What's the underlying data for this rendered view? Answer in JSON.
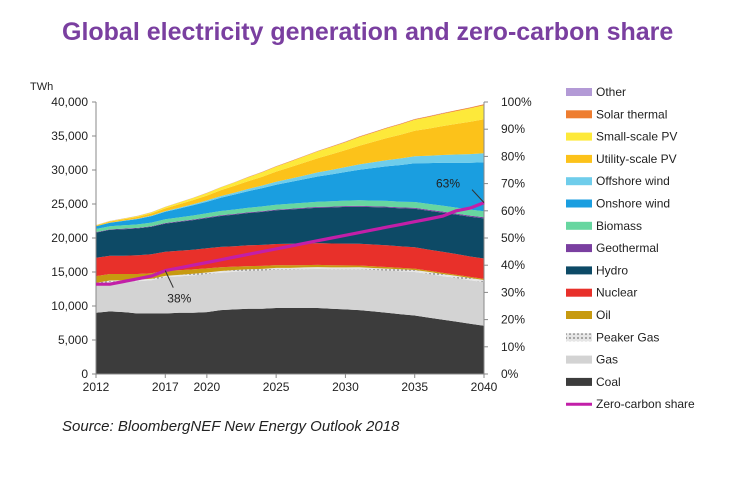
{
  "title": "Global electricity generation and zero-carbon share",
  "source": "Source: BloombergNEF New Energy Outlook 2018",
  "chart_data": {
    "type": "area",
    "title": "Global electricity generation and zero-carbon share",
    "xlabel": "",
    "ylabel": "TWh",
    "ylim": [
      0,
      40000
    ],
    "y2lim": [
      0,
      100
    ],
    "x": [
      2012,
      2013,
      2014,
      2015,
      2016,
      2017,
      2018,
      2019,
      2020,
      2021,
      2022,
      2023,
      2024,
      2025,
      2026,
      2027,
      2028,
      2029,
      2030,
      2031,
      2032,
      2033,
      2034,
      2035,
      2036,
      2037,
      2038,
      2039,
      2040
    ],
    "x_ticks": [
      2012,
      2017,
      2020,
      2025,
      2030,
      2035,
      2040
    ],
    "y_ticks": [
      "0",
      "5,000",
      "10,000",
      "15,000",
      "20,000",
      "25,000",
      "30,000",
      "35,000",
      "40,000"
    ],
    "y2_ticks": [
      "0%",
      "10%",
      "20%",
      "30%",
      "40%",
      "50%",
      "60%",
      "70%",
      "80%",
      "90%",
      "100%"
    ],
    "legend_position": "right",
    "legend_order": [
      "Other",
      "Solar thermal",
      "Small-scale PV",
      "Utility-scale PV",
      "Offshore wind",
      "Onshore wind",
      "Biomass",
      "Geothermal",
      "Hydro",
      "Nuclear",
      "Oil",
      "Peaker Gas",
      "Gas",
      "Coal",
      "Zero-carbon share"
    ],
    "series": [
      {
        "name": "Coal",
        "color": "#3c3c3c",
        "values": [
          9000,
          9200,
          9100,
          8900,
          8900,
          8900,
          9000,
          9000,
          9100,
          9400,
          9500,
          9600,
          9600,
          9700,
          9700,
          9700,
          9700,
          9600,
          9500,
          9400,
          9200,
          9000,
          8800,
          8600,
          8300,
          8000,
          7700,
          7400,
          7100
        ]
      },
      {
        "name": "Gas",
        "color": "#d3d3d3",
        "values": [
          4200,
          4350,
          4500,
          4750,
          4900,
          5300,
          5350,
          5500,
          5600,
          5500,
          5550,
          5550,
          5600,
          5650,
          5650,
          5700,
          5750,
          5800,
          5900,
          6000,
          6100,
          6200,
          6300,
          6400,
          6400,
          6400,
          6400,
          6400,
          6400
        ]
      },
      {
        "name": "Peaker Gas",
        "color": "#c8c8c8",
        "pattern": "dots",
        "values": [
          200,
          200,
          200,
          210,
          210,
          220,
          220,
          230,
          230,
          240,
          240,
          250,
          250,
          260,
          260,
          270,
          270,
          280,
          280,
          290,
          290,
          300,
          300,
          300,
          310,
          310,
          320,
          320,
          330
        ]
      },
      {
        "name": "Oil",
        "color": "#c79a10",
        "values": [
          1000,
          950,
          900,
          850,
          800,
          750,
          700,
          650,
          600,
          550,
          500,
          470,
          440,
          410,
          380,
          350,
          330,
          310,
          290,
          270,
          250,
          230,
          210,
          200,
          190,
          180,
          170,
          160,
          150
        ]
      },
      {
        "name": "Nuclear",
        "color": "#e8302a",
        "values": [
          2700,
          2700,
          2700,
          2750,
          2800,
          2800,
          2850,
          2900,
          2950,
          3000,
          3000,
          3050,
          3100,
          3100,
          3150,
          3150,
          3200,
          3200,
          3200,
          3200,
          3200,
          3200,
          3150,
          3150,
          3100,
          3100,
          3050,
          3000,
          3000
        ]
      },
      {
        "name": "Hydro",
        "color": "#0d4a66",
        "values": [
          3700,
          3800,
          3900,
          3950,
          4050,
          4150,
          4250,
          4350,
          4450,
          4550,
          4650,
          4750,
          4850,
          4950,
          5050,
          5150,
          5200,
          5300,
          5400,
          5450,
          5500,
          5550,
          5600,
          5650,
          5700,
          5750,
          5800,
          5850,
          5900
        ]
      },
      {
        "name": "Geothermal",
        "color": "#7a3fa0",
        "values": [
          70,
          70,
          75,
          80,
          80,
          85,
          90,
          90,
          95,
          100,
          100,
          105,
          110,
          110,
          115,
          120,
          120,
          125,
          130,
          130,
          135,
          140,
          140,
          145,
          150,
          150,
          155,
          160,
          160
        ]
      },
      {
        "name": "Biomass",
        "color": "#67d6a0",
        "values": [
          450,
          470,
          490,
          510,
          530,
          550,
          570,
          590,
          610,
          630,
          650,
          670,
          690,
          710,
          730,
          750,
          770,
          790,
          800,
          810,
          820,
          830,
          840,
          850,
          860,
          870,
          880,
          890,
          900
        ]
      },
      {
        "name": "Onshore wind",
        "color": "#1a9ee0",
        "values": [
          400,
          500,
          650,
          800,
          950,
          1100,
          1300,
          1500,
          1700,
          1950,
          2200,
          2450,
          2700,
          2950,
          3200,
          3450,
          3700,
          3950,
          4200,
          4500,
          4800,
          5100,
          5400,
          5700,
          6000,
          6300,
          6600,
          6900,
          7200
        ]
      },
      {
        "name": "Offshore wind",
        "color": "#6fcdeb",
        "values": [
          20,
          30,
          40,
          60,
          80,
          100,
          130,
          160,
          200,
          240,
          280,
          330,
          380,
          430,
          480,
          540,
          600,
          660,
          720,
          780,
          840,
          900,
          960,
          1020,
          1080,
          1140,
          1200,
          1260,
          1320
        ]
      },
      {
        "name": "Utility-scale PV",
        "color": "#fcc21a",
        "values": [
          100,
          150,
          200,
          250,
          300,
          400,
          500,
          600,
          700,
          850,
          1000,
          1150,
          1300,
          1500,
          1700,
          1900,
          2100,
          2300,
          2500,
          2750,
          3000,
          3250,
          3500,
          3750,
          4000,
          4250,
          4500,
          4750,
          5000
        ]
      },
      {
        "name": "Small-scale PV",
        "color": "#fde93a",
        "values": [
          50,
          70,
          100,
          130,
          170,
          210,
          260,
          310,
          370,
          430,
          500,
          570,
          650,
          730,
          810,
          900,
          990,
          1080,
          1170,
          1260,
          1350,
          1440,
          1530,
          1620,
          1710,
          1800,
          1890,
          1980,
          2070
        ]
      },
      {
        "name": "Solar thermal",
        "color": "#ee7d30",
        "values": [
          5,
          6,
          8,
          10,
          12,
          15,
          18,
          21,
          25,
          30,
          35,
          40,
          45,
          50,
          55,
          60,
          65,
          70,
          75,
          80,
          85,
          90,
          95,
          100,
          105,
          110,
          115,
          120,
          125
        ]
      },
      {
        "name": "Other",
        "color": "#b39ad6",
        "values": [
          20,
          20,
          20,
          20,
          20,
          20,
          20,
          20,
          20,
          20,
          20,
          20,
          20,
          20,
          20,
          20,
          20,
          20,
          20,
          20,
          20,
          20,
          20,
          20,
          20,
          20,
          20,
          20,
          20
        ]
      }
    ],
    "line_series": {
      "name": "Zero-carbon share",
      "axis": "right",
      "color": "#c21fa8",
      "values": [
        33,
        33,
        34,
        35,
        36,
        38,
        39,
        40,
        41,
        42,
        43,
        44,
        45,
        46,
        47,
        48,
        49,
        50,
        51,
        52,
        53,
        54,
        55,
        56,
        57,
        58,
        60,
        61,
        63
      ]
    },
    "annotations": [
      {
        "text": "38%",
        "x": 2017,
        "value": 38
      },
      {
        "text": "63%",
        "x": 2040,
        "value": 63
      }
    ]
  }
}
